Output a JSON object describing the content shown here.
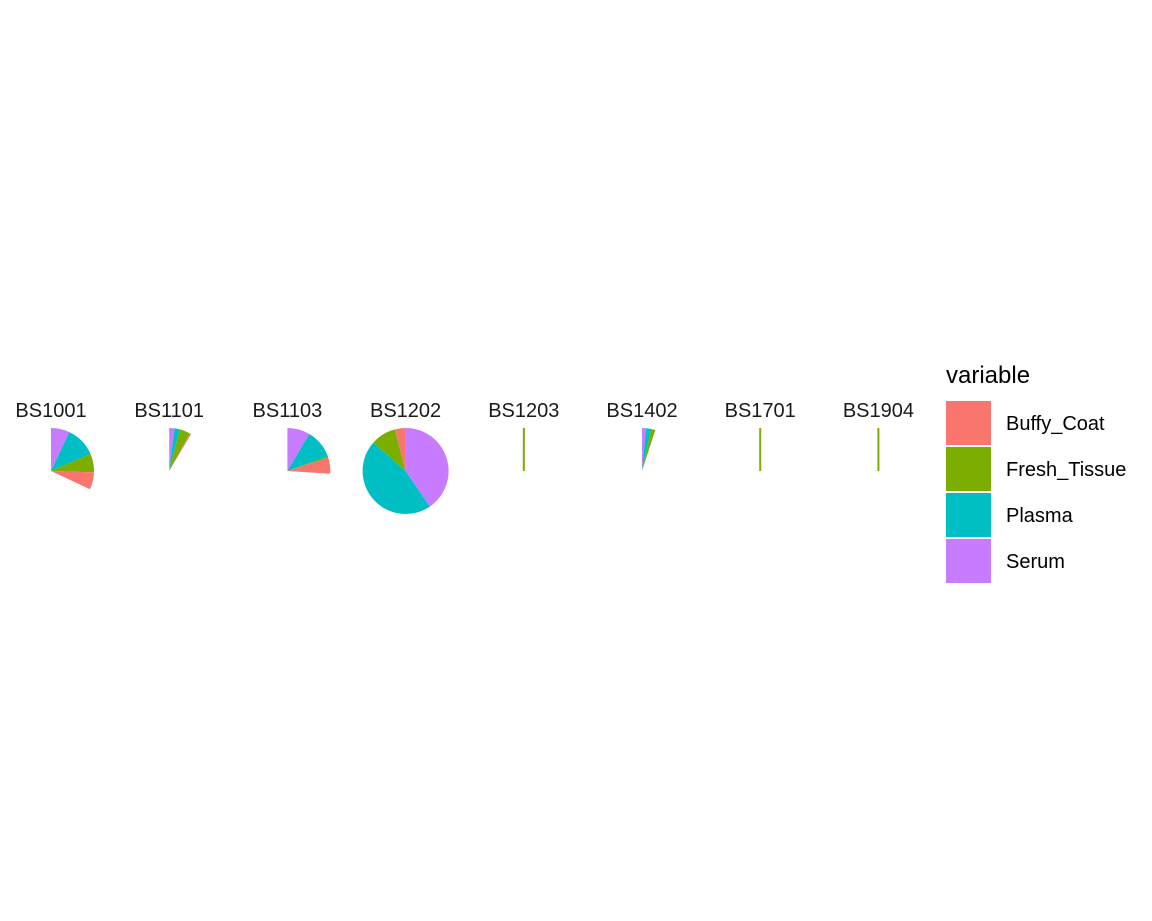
{
  "chart_data": {
    "type": "pie",
    "subtype": "faceted-polar-bar",
    "variables": [
      "Buffy_Coat",
      "Fresh_Tissue",
      "Plasma",
      "Serum"
    ],
    "colors": {
      "Buffy_Coat": "#F8766D",
      "Fresh_Tissue": "#7CAE00",
      "Plasma": "#00BFC4",
      "Serum": "#C77CFF"
    },
    "legend": {
      "title": "variable",
      "position": "right"
    },
    "facets": [
      {
        "label": "BS1001",
        "values": {
          "Buffy_Coat": 0.065,
          "Fresh_Tissue": 0.07,
          "Plasma": 0.115,
          "Serum": 0.07
        }
      },
      {
        "label": "BS1101",
        "values": {
          "Buffy_Coat": 0.005,
          "Fresh_Tissue": 0.04,
          "Plasma": 0.02,
          "Serum": 0.02
        }
      },
      {
        "label": "BS1103",
        "values": {
          "Buffy_Coat": 0.06,
          "Fresh_Tissue": 0.005,
          "Plasma": 0.11,
          "Serum": 0.085
        }
      },
      {
        "label": "BS1202",
        "values": {
          "Buffy_Coat": 0.04,
          "Fresh_Tissue": 0.095,
          "Plasma": 0.46,
          "Serum": 0.405
        }
      },
      {
        "label": "BS1203",
        "values": {
          "Buffy_Coat": 0.0,
          "Fresh_Tissue": 0.004,
          "Plasma": 0.0,
          "Serum": 0.0
        }
      },
      {
        "label": "BS1402",
        "values": {
          "Buffy_Coat": 0.0,
          "Fresh_Tissue": 0.015,
          "Plasma": 0.02,
          "Serum": 0.015
        }
      },
      {
        "label": "BS1701",
        "values": {
          "Buffy_Coat": 0.0,
          "Fresh_Tissue": 0.001,
          "Plasma": 0.0,
          "Serum": 0.0
        }
      },
      {
        "label": "BS1904",
        "values": {
          "Buffy_Coat": 0.0,
          "Fresh_Tissue": 0.001,
          "Plasma": 0.0,
          "Serum": 0.0
        }
      }
    ]
  }
}
